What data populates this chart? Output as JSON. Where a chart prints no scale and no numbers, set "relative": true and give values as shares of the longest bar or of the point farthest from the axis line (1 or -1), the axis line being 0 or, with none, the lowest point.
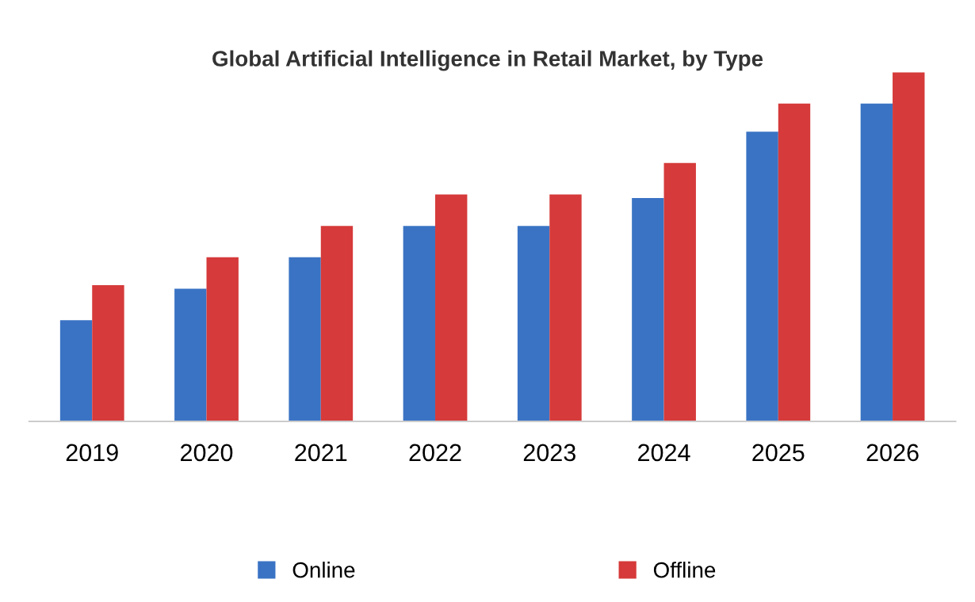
{
  "chart_data": {
    "type": "bar",
    "title": "Global Artificial Intelligence in Retail Market, by Type",
    "categories": [
      "2019",
      "2020",
      "2021",
      "2022",
      "2023",
      "2024",
      "2025",
      "2026"
    ],
    "relative": true,
    "series": [
      {
        "name": "Online",
        "color": "#3a73c4",
        "values": [
          0.29,
          0.38,
          0.47,
          0.56,
          0.56,
          0.64,
          0.83,
          0.91
        ]
      },
      {
        "name": "Offline",
        "color": "#d63a3a",
        "values": [
          0.39,
          0.47,
          0.56,
          0.65,
          0.65,
          0.74,
          0.91,
          1.0
        ]
      }
    ],
    "legend": "bottom",
    "grid": false
  }
}
